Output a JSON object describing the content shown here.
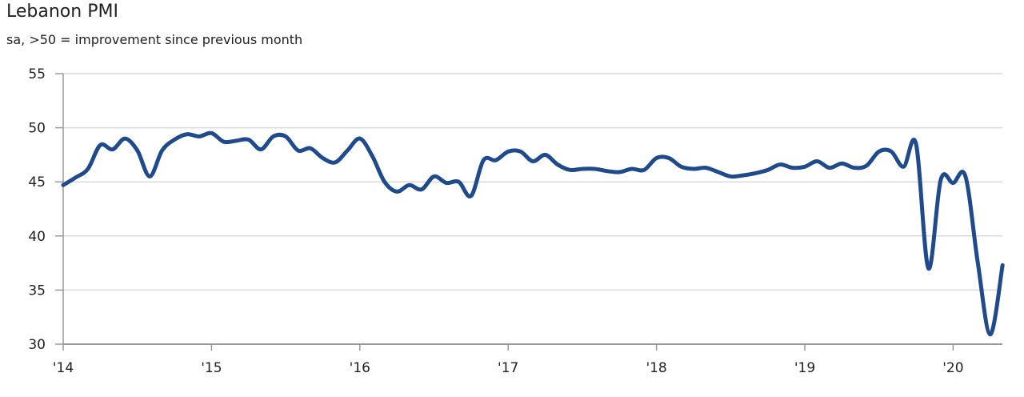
{
  "chart_data": {
    "type": "line",
    "title": "Lebanon PMI",
    "subtitle": "sa, >50 = improvement since previous month",
    "xlabel": "",
    "ylabel": "",
    "ylim": [
      30,
      55
    ],
    "yticks": [
      "30",
      "35",
      "40",
      "45",
      "50",
      "55"
    ],
    "xticks": [
      "'14",
      "'15",
      "'16",
      "'17",
      "'18",
      "'19",
      "'20"
    ],
    "x_start": "2014-01",
    "x_frequency": "monthly",
    "grid": "horizontal",
    "color": "#1f4a8c",
    "series": [
      {
        "name": "Lebanon PMI",
        "values": [
          44.7,
          45.4,
          46.2,
          48.4,
          48.0,
          49.0,
          47.9,
          45.5,
          47.9,
          48.9,
          49.4,
          49.2,
          49.5,
          48.7,
          48.8,
          48.9,
          48.0,
          49.2,
          49.2,
          47.9,
          48.1,
          47.2,
          46.8,
          47.9,
          49.0,
          47.4,
          45.0,
          44.1,
          44.7,
          44.3,
          45.5,
          44.9,
          45.0,
          43.7,
          47.0,
          47.0,
          47.8,
          47.8,
          46.9,
          47.5,
          46.6,
          46.1,
          46.2,
          46.2,
          46.0,
          45.9,
          46.2,
          46.1,
          47.2,
          47.2,
          46.4,
          46.2,
          46.3,
          45.9,
          45.5,
          45.6,
          45.8,
          46.1,
          46.6,
          46.3,
          46.4,
          46.9,
          46.3,
          46.7,
          46.3,
          46.5,
          47.8,
          47.8,
          46.4,
          48.5,
          37.0,
          45.2,
          44.9,
          45.5,
          37.5,
          30.9,
          37.3
        ]
      }
    ]
  }
}
